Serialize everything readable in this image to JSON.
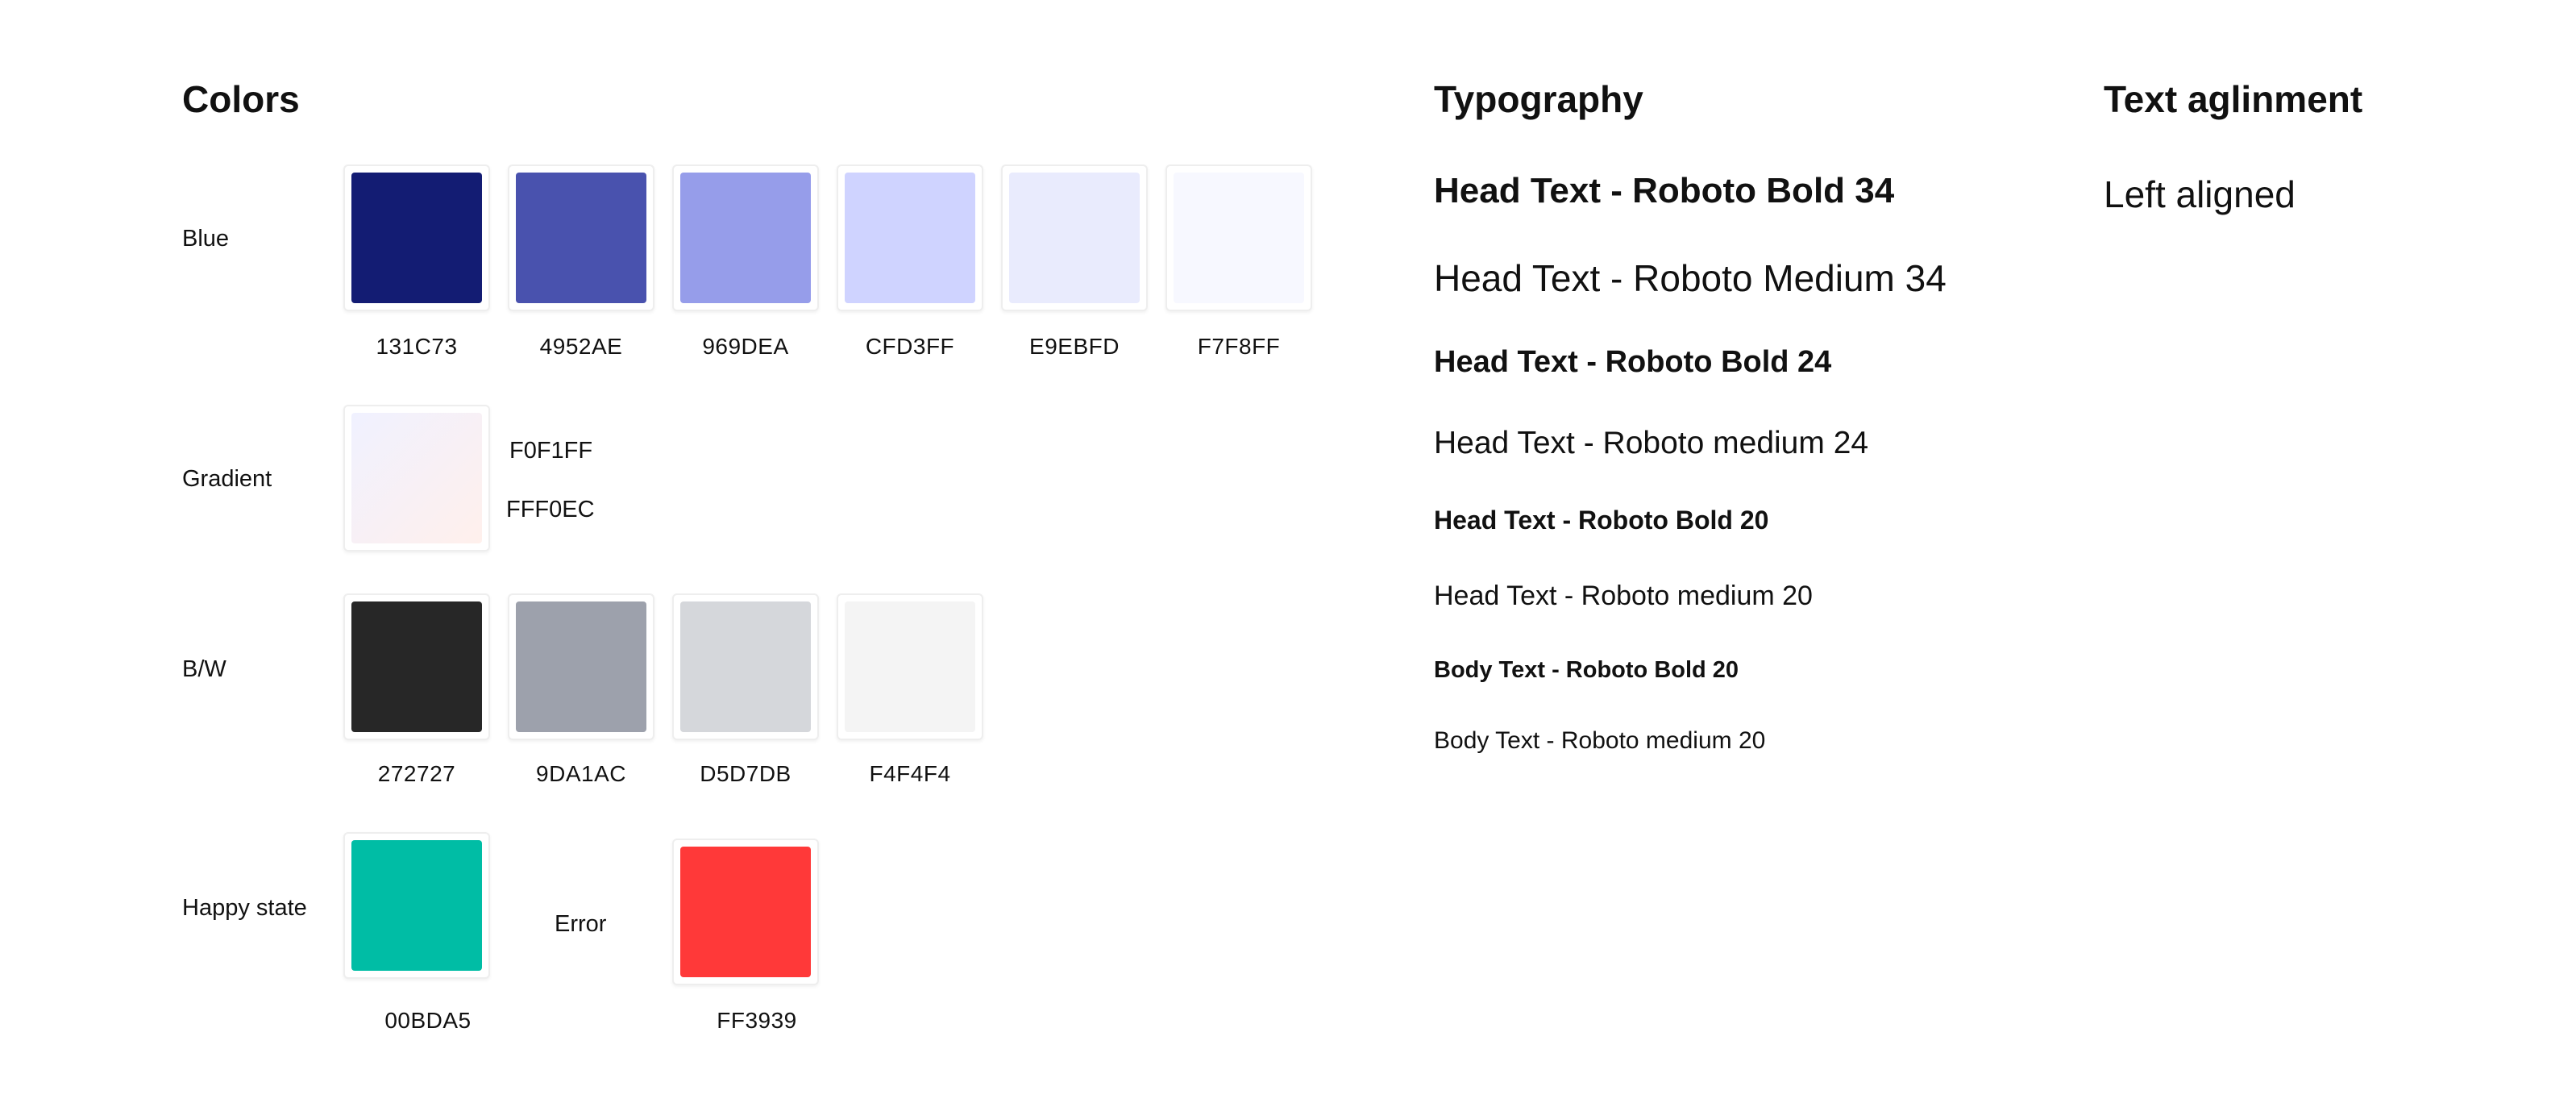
{
  "colors": {
    "title": "Colors",
    "blue": {
      "label": "Blue",
      "swatches": [
        {
          "hex": "131C73",
          "color": "#131C73"
        },
        {
          "hex": "4952AE",
          "color": "#4952AE"
        },
        {
          "hex": "969DEA",
          "color": "#969DEA"
        },
        {
          "hex": "CFD3FF",
          "color": "#CFD3FF"
        },
        {
          "hex": "E9EBFD",
          "color": "#E9EBFD"
        },
        {
          "hex": "F7F8FF",
          "color": "#F7F8FF"
        }
      ]
    },
    "gradient": {
      "label": "Gradient",
      "from": "F0F1FF",
      "to": "FFF0EC",
      "from_color": "#F0F1FF",
      "to_color": "#FFF0EC"
    },
    "bw": {
      "label": "B/W",
      "swatches": [
        {
          "hex": "272727",
          "color": "#272727"
        },
        {
          "hex": "9DA1AC",
          "color": "#9DA1AC"
        },
        {
          "hex": "D5D7DB",
          "color": "#D5D7DB"
        },
        {
          "hex": "F4F4F4",
          "color": "#F4F4F4"
        }
      ]
    },
    "happy": {
      "label": "Happy state",
      "hex": "00BDA5",
      "color": "#00BDA5"
    },
    "error": {
      "label": "Error",
      "hex": "FF3939",
      "color": "#FF3939"
    }
  },
  "typography": {
    "title": "Typography",
    "samples": [
      "Head Text - Roboto Bold 34",
      "Head Text - Roboto Medium 34",
      "Head Text - Roboto Bold 24",
      "Head Text - Roboto medium 24",
      "Head Text - Roboto Bold 20",
      "Head Text - Roboto medium 20",
      "Body Text - Roboto Bold 20",
      "Body Text - Roboto medium 20"
    ]
  },
  "alignment": {
    "title": "Text aglinment",
    "sample": "Left aligned"
  }
}
